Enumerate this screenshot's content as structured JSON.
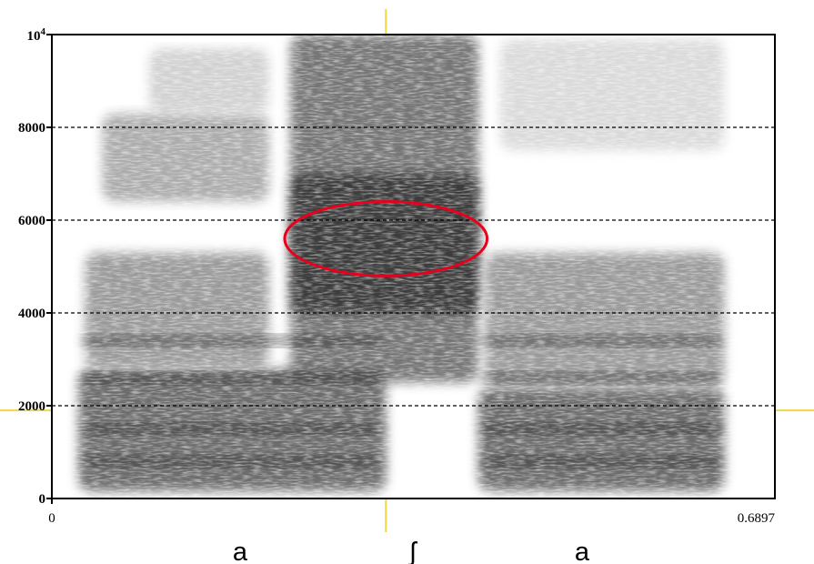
{
  "chart_data": {
    "type": "heatmap",
    "title": "",
    "xlabel": "",
    "ylabel": "",
    "xlim": [
      0,
      0.6897
    ],
    "ylim": [
      0,
      10000
    ],
    "x_tick_labels": [
      "0",
      "0.6897"
    ],
    "y_ticks": [
      {
        "value": 0,
        "label": "0"
      },
      {
        "value": 2000,
        "label": "2000"
      },
      {
        "value": 4000,
        "label": "4000"
      },
      {
        "value": 6000,
        "label": "6000"
      },
      {
        "value": 8000,
        "label": "8000"
      }
    ],
    "y_top_label": {
      "base": "10",
      "exponent": "4"
    },
    "gridlines": [
      2000,
      4000,
      6000,
      8000
    ],
    "grid_style": "dashed",
    "segments": [
      {
        "label": "a",
        "start": 0.066,
        "end": 0.462
      },
      {
        "label": "ʃ",
        "start": 0.462,
        "end": 0.829
      },
      {
        "label": "a",
        "start": 0.829,
        "end": 1.0
      }
    ],
    "energy_regions": [
      {
        "x0": 0.037,
        "x1": 0.462,
        "f0": 150,
        "f1": 2800,
        "intensity": 0.8
      },
      {
        "x0": 0.046,
        "x1": 0.3,
        "f0": 2800,
        "f1": 5300,
        "intensity": 0.55
      },
      {
        "x0": 0.07,
        "x1": 0.3,
        "f0": 6400,
        "f1": 8300,
        "intensity": 0.45
      },
      {
        "x0": 0.135,
        "x1": 0.3,
        "f0": 8300,
        "f1": 9700,
        "intensity": 0.25
      },
      {
        "x0": 0.33,
        "x1": 0.59,
        "f0": 2500,
        "f1": 10000,
        "intensity": 0.75
      },
      {
        "x0": 0.33,
        "x1": 0.59,
        "f0": 4000,
        "f1": 7000,
        "intensity": 0.95
      },
      {
        "x0": 0.59,
        "x1": 0.93,
        "f0": 150,
        "f1": 2400,
        "intensity": 0.8
      },
      {
        "x0": 0.6,
        "x1": 0.93,
        "f0": 2400,
        "f1": 5300,
        "intensity": 0.55
      },
      {
        "x0": 0.62,
        "x1": 0.93,
        "f0": 7500,
        "f1": 9900,
        "intensity": 0.2
      }
    ],
    "formant_bands_hz": [
      800,
      1500,
      2600,
      3400
    ],
    "annotation": {
      "type": "ellipse",
      "color": "#e8001c",
      "center_x": 0.462,
      "center_freq": 5600,
      "radius_x": 0.14,
      "radius_freq": 800
    },
    "guide_color": "#f2d54a"
  }
}
